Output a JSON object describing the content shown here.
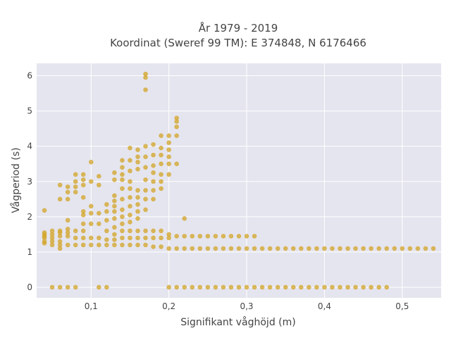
{
  "chart_data": {
    "type": "scatter",
    "title_line1": "År 1979 - 2019",
    "title_line2": "Koordinat (Sweref 99 TM): E 374848, N 6176466",
    "xlabel": "Signifikant våghöjd (m)",
    "ylabel": "Vågperiod (s)",
    "xlim": [
      0.03,
      0.55
    ],
    "ylim": [
      -0.3,
      6.35
    ],
    "x_ticks": [
      0.1,
      0.2,
      0.3,
      0.4,
      0.5
    ],
    "x_tick_labels": [
      "0,1",
      "0,2",
      "0,3",
      "0,4",
      "0,5"
    ],
    "y_ticks": [
      0,
      1,
      2,
      3,
      4,
      5,
      6
    ],
    "y_tick_labels": [
      "0",
      "1",
      "2",
      "3",
      "4",
      "5",
      "6"
    ],
    "grid": true,
    "colors": {
      "marker": "#d4a72c",
      "plot_bg": "#e5e5ef",
      "grid": "#ffffff"
    },
    "points": [
      [
        0.04,
        1.25
      ],
      [
        0.04,
        1.3
      ],
      [
        0.04,
        1.4
      ],
      [
        0.04,
        1.45
      ],
      [
        0.04,
        1.5
      ],
      [
        0.04,
        1.55
      ],
      [
        0.04,
        2.18
      ],
      [
        0.05,
        1.2
      ],
      [
        0.05,
        1.3
      ],
      [
        0.05,
        1.4
      ],
      [
        0.05,
        1.5
      ],
      [
        0.05,
        1.6
      ],
      [
        0.05,
        0
      ],
      [
        0.06,
        1.1
      ],
      [
        0.06,
        1.2
      ],
      [
        0.06,
        1.3
      ],
      [
        0.06,
        1.45
      ],
      [
        0.06,
        1.55
      ],
      [
        0.06,
        1.6
      ],
      [
        0.06,
        2.5
      ],
      [
        0.06,
        2.9
      ],
      [
        0.06,
        0
      ],
      [
        0.07,
        1.2
      ],
      [
        0.07,
        1.45
      ],
      [
        0.07,
        1.55
      ],
      [
        0.07,
        1.65
      ],
      [
        0.07,
        1.9
      ],
      [
        0.07,
        2.5
      ],
      [
        0.07,
        2.7
      ],
      [
        0.07,
        2.85
      ],
      [
        0.07,
        0
      ],
      [
        0.08,
        1.2
      ],
      [
        0.08,
        1.4
      ],
      [
        0.08,
        1.6
      ],
      [
        0.08,
        2.7
      ],
      [
        0.08,
        2.85
      ],
      [
        0.08,
        3.0
      ],
      [
        0.08,
        3.2
      ],
      [
        0.08,
        0
      ],
      [
        0.09,
        1.2
      ],
      [
        0.09,
        1.4
      ],
      [
        0.09,
        1.6
      ],
      [
        0.09,
        1.8
      ],
      [
        0.09,
        2.05
      ],
      [
        0.09,
        2.15
      ],
      [
        0.09,
        2.55
      ],
      [
        0.09,
        2.9
      ],
      [
        0.09,
        3.05
      ],
      [
        0.09,
        3.2
      ],
      [
        0.1,
        1.2
      ],
      [
        0.1,
        1.4
      ],
      [
        0.1,
        1.8
      ],
      [
        0.1,
        2.1
      ],
      [
        0.1,
        2.3
      ],
      [
        0.1,
        3.0
      ],
      [
        0.1,
        3.55
      ],
      [
        0.11,
        1.2
      ],
      [
        0.11,
        1.4
      ],
      [
        0.11,
        1.8
      ],
      [
        0.11,
        2.1
      ],
      [
        0.11,
        2.9
      ],
      [
        0.11,
        3.15
      ],
      [
        0.11,
        0
      ],
      [
        0.12,
        1.2
      ],
      [
        0.12,
        1.35
      ],
      [
        0.12,
        1.6
      ],
      [
        0.12,
        1.9
      ],
      [
        0.12,
        2.15
      ],
      [
        0.12,
        2.35
      ],
      [
        0.12,
        0
      ],
      [
        0.13,
        1.2
      ],
      [
        0.13,
        1.35
      ],
      [
        0.13,
        1.5
      ],
      [
        0.13,
        1.7
      ],
      [
        0.13,
        1.95
      ],
      [
        0.13,
        2.15
      ],
      [
        0.13,
        2.3
      ],
      [
        0.13,
        2.45
      ],
      [
        0.13,
        2.6
      ],
      [
        0.13,
        3.05
      ],
      [
        0.13,
        3.25
      ],
      [
        0.14,
        1.2
      ],
      [
        0.14,
        1.4
      ],
      [
        0.14,
        1.6
      ],
      [
        0.14,
        1.8
      ],
      [
        0.14,
        2.0
      ],
      [
        0.14,
        2.2
      ],
      [
        0.14,
        2.5
      ],
      [
        0.14,
        2.8
      ],
      [
        0.14,
        3.05
      ],
      [
        0.14,
        3.2
      ],
      [
        0.14,
        3.4
      ],
      [
        0.14,
        3.6
      ],
      [
        0.15,
        1.2
      ],
      [
        0.15,
        1.4
      ],
      [
        0.15,
        1.6
      ],
      [
        0.15,
        1.85
      ],
      [
        0.15,
        2.05
      ],
      [
        0.15,
        2.3
      ],
      [
        0.15,
        2.55
      ],
      [
        0.15,
        2.8
      ],
      [
        0.15,
        3.0
      ],
      [
        0.15,
        3.3
      ],
      [
        0.15,
        3.6
      ],
      [
        0.15,
        3.95
      ],
      [
        0.16,
        1.2
      ],
      [
        0.16,
        1.4
      ],
      [
        0.16,
        1.6
      ],
      [
        0.16,
        1.95
      ],
      [
        0.16,
        2.15
      ],
      [
        0.16,
        2.35
      ],
      [
        0.16,
        2.55
      ],
      [
        0.16,
        2.75
      ],
      [
        0.16,
        3.35
      ],
      [
        0.16,
        3.55
      ],
      [
        0.16,
        3.7
      ],
      [
        0.16,
        3.9
      ],
      [
        0.17,
        1.2
      ],
      [
        0.17,
        1.4
      ],
      [
        0.17,
        1.6
      ],
      [
        0.17,
        2.2
      ],
      [
        0.17,
        2.5
      ],
      [
        0.17,
        2.75
      ],
      [
        0.17,
        3.05
      ],
      [
        0.17,
        3.4
      ],
      [
        0.17,
        3.7
      ],
      [
        0.17,
        4.0
      ],
      [
        0.17,
        5.6
      ],
      [
        0.17,
        5.95
      ],
      [
        0.17,
        6.05
      ],
      [
        0.18,
        1.15
      ],
      [
        0.18,
        1.4
      ],
      [
        0.18,
        1.6
      ],
      [
        0.18,
        2.5
      ],
      [
        0.18,
        2.75
      ],
      [
        0.18,
        3.0
      ],
      [
        0.18,
        3.25
      ],
      [
        0.18,
        3.45
      ],
      [
        0.18,
        3.75
      ],
      [
        0.18,
        4.05
      ],
      [
        0.19,
        1.15
      ],
      [
        0.19,
        1.4
      ],
      [
        0.19,
        1.6
      ],
      [
        0.19,
        2.8
      ],
      [
        0.19,
        3.0
      ],
      [
        0.19,
        3.2
      ],
      [
        0.19,
        3.5
      ],
      [
        0.19,
        3.75
      ],
      [
        0.19,
        3.95
      ],
      [
        0.19,
        4.3
      ],
      [
        0.2,
        1.1
      ],
      [
        0.2,
        1.4
      ],
      [
        0.2,
        1.5
      ],
      [
        0.2,
        3.2
      ],
      [
        0.2,
        3.5
      ],
      [
        0.2,
        3.7
      ],
      [
        0.2,
        3.9
      ],
      [
        0.2,
        4.1
      ],
      [
        0.2,
        4.3
      ],
      [
        0.2,
        0
      ],
      [
        0.21,
        1.1
      ],
      [
        0.21,
        1.45
      ],
      [
        0.21,
        3.5
      ],
      [
        0.21,
        4.3
      ],
      [
        0.21,
        4.55
      ],
      [
        0.21,
        4.7
      ],
      [
        0.21,
        4.8
      ],
      [
        0.21,
        0
      ],
      [
        0.22,
        1.1
      ],
      [
        0.22,
        1.45
      ],
      [
        0.22,
        1.95
      ],
      [
        0.22,
        0
      ],
      [
        0.23,
        1.1
      ],
      [
        0.23,
        1.45
      ],
      [
        0.23,
        0
      ],
      [
        0.24,
        1.1
      ],
      [
        0.24,
        1.45
      ],
      [
        0.24,
        0
      ],
      [
        0.25,
        1.1
      ],
      [
        0.25,
        1.45
      ],
      [
        0.25,
        0
      ],
      [
        0.26,
        1.1
      ],
      [
        0.26,
        1.45
      ],
      [
        0.26,
        0
      ],
      [
        0.27,
        1.1
      ],
      [
        0.27,
        1.45
      ],
      [
        0.27,
        0
      ],
      [
        0.28,
        1.1
      ],
      [
        0.28,
        1.45
      ],
      [
        0.28,
        0
      ],
      [
        0.29,
        1.1
      ],
      [
        0.29,
        1.45
      ],
      [
        0.29,
        0
      ],
      [
        0.3,
        1.1
      ],
      [
        0.3,
        1.45
      ],
      [
        0.3,
        0
      ],
      [
        0.31,
        1.1
      ],
      [
        0.31,
        1.45
      ],
      [
        0.31,
        0
      ],
      [
        0.32,
        1.1
      ],
      [
        0.32,
        0
      ],
      [
        0.33,
        1.1
      ],
      [
        0.33,
        0
      ],
      [
        0.34,
        1.1
      ],
      [
        0.34,
        0
      ],
      [
        0.35,
        1.1
      ],
      [
        0.35,
        0
      ],
      [
        0.36,
        1.1
      ],
      [
        0.36,
        0
      ],
      [
        0.37,
        1.1
      ],
      [
        0.37,
        0
      ],
      [
        0.38,
        1.1
      ],
      [
        0.38,
        0
      ],
      [
        0.39,
        1.1
      ],
      [
        0.39,
        0
      ],
      [
        0.4,
        1.1
      ],
      [
        0.4,
        0
      ],
      [
        0.41,
        1.1
      ],
      [
        0.41,
        0
      ],
      [
        0.42,
        1.1
      ],
      [
        0.42,
        0
      ],
      [
        0.43,
        1.1
      ],
      [
        0.43,
        0
      ],
      [
        0.44,
        1.1
      ],
      [
        0.44,
        0
      ],
      [
        0.45,
        1.1
      ],
      [
        0.45,
        0
      ],
      [
        0.46,
        1.1
      ],
      [
        0.46,
        0
      ],
      [
        0.47,
        1.1
      ],
      [
        0.47,
        0
      ],
      [
        0.48,
        1.1
      ],
      [
        0.48,
        0
      ],
      [
        0.49,
        1.1
      ],
      [
        0.5,
        1.1
      ],
      [
        0.51,
        1.1
      ],
      [
        0.52,
        1.1
      ],
      [
        0.53,
        1.1
      ],
      [
        0.54,
        1.1
      ]
    ]
  }
}
